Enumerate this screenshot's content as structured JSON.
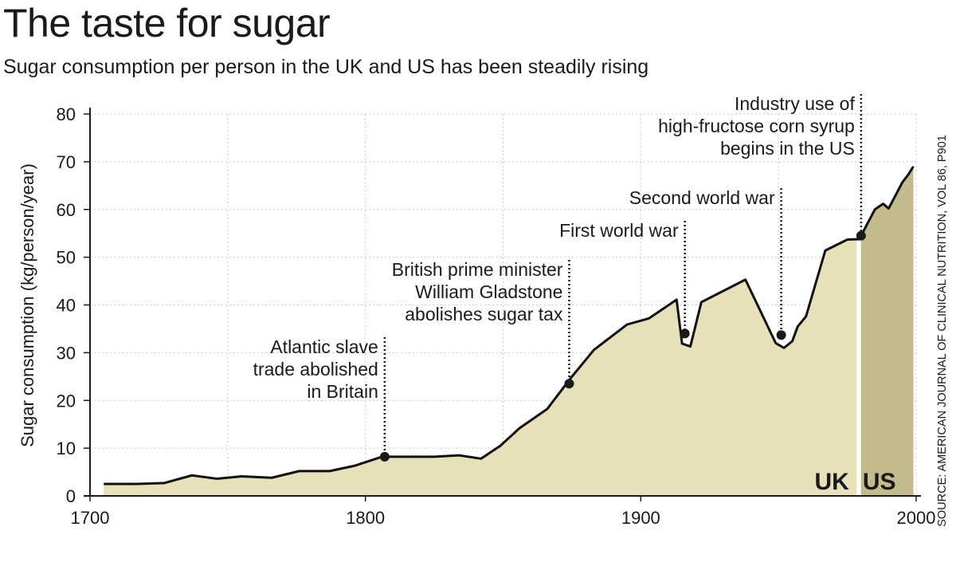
{
  "title": "The taste for sugar",
  "subtitle": "Sugar consumption per person in the UK and US has been steadily rising",
  "source": "SOURCE: AMERICAN JOURNAL OF CLINICAL NUTRITION, VOL 86, P901",
  "colors": {
    "uk_fill": "#e8e0b8",
    "us_fill": "#c4bb8c",
    "line": "#111111",
    "grid": "#c8c8c8"
  },
  "chart_data": {
    "type": "area",
    "title": "The taste for sugar",
    "xlabel": "",
    "ylabel": "Sugar consumption (kg/person/year)",
    "xlim": [
      1700,
      2000
    ],
    "ylim": [
      0,
      80
    ],
    "xticks": [
      1700,
      1800,
      1900,
      2000
    ],
    "xtick_labels": [
      "1700",
      "1800",
      "1900",
      "2000"
    ],
    "yticks": [
      0,
      10,
      20,
      30,
      40,
      50,
      60,
      70,
      80
    ],
    "ytick_labels": [
      "0",
      "10",
      "20",
      "30",
      "40",
      "50",
      "60",
      "70",
      "80"
    ],
    "grid": true,
    "series": [
      {
        "name": "UK",
        "x": [
          1705,
          1717,
          1727,
          1737,
          1746,
          1755,
          1766,
          1776,
          1787,
          1796,
          1806,
          1815,
          1825,
          1834,
          1842,
          1849,
          1856,
          1866,
          1875,
          1883,
          1895,
          1903,
          1913,
          1915,
          1918,
          1922,
          1938,
          1949,
          1952,
          1955,
          1957,
          1960,
          1967,
          1975,
          1980
        ],
        "y": [
          2.5,
          2.5,
          2.7,
          4.3,
          3.6,
          4.1,
          3.8,
          5.2,
          5.2,
          6.3,
          8.2,
          8.2,
          8.2,
          8.5,
          7.8,
          10.5,
          14.2,
          18.2,
          25.0,
          30.6,
          35.9,
          37.2,
          41.1,
          31.9,
          31.3,
          40.6,
          45.3,
          32.0,
          31.0,
          32.4,
          35.5,
          37.6,
          51.4,
          53.7,
          53.8
        ]
      },
      {
        "name": "US",
        "x": [
          1980,
          1985,
          1988,
          1990,
          1993,
          1995,
          1997,
          1999
        ],
        "y": [
          54.5,
          60.0,
          61.2,
          60.2,
          63.5,
          65.7,
          67.2,
          69.0
        ]
      }
    ],
    "region_labels": [
      "UK",
      "US"
    ],
    "annotations": [
      {
        "lines": [
          "Atlantic slave",
          "trade abolished",
          "in Britain"
        ],
        "x": 1807,
        "y": 8.2
      },
      {
        "lines": [
          "British prime minister",
          "William Gladstone",
          "abolishes sugar tax"
        ],
        "x": 1874,
        "y": 23.5
      },
      {
        "lines": [
          "First world war"
        ],
        "x": 1916,
        "y": 34.0
      },
      {
        "lines": [
          "Second world war"
        ],
        "x": 1951,
        "y": 33.7
      },
      {
        "lines": [
          "Industry use of",
          "high-fructose corn syrup",
          "begins in the US"
        ],
        "x": 1980,
        "y": 54.5
      }
    ]
  }
}
